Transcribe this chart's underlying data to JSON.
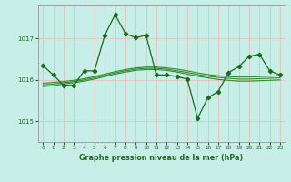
{
  "title": "Graphe pression niveau de la mer (hPa)",
  "background_color": "#c8eee8",
  "grid_color": "#e8b8b8",
  "line_color_main": "#1a6b1a",
  "line_color_smooth": "#2d8b2d",
  "xlim": [
    -0.5,
    23.5
  ],
  "ylim": [
    1014.5,
    1017.8
  ],
  "yticks": [
    1015,
    1016,
    1017
  ],
  "xticks": [
    0,
    1,
    2,
    3,
    4,
    5,
    6,
    7,
    8,
    9,
    10,
    11,
    12,
    13,
    14,
    15,
    16,
    17,
    18,
    19,
    20,
    21,
    22,
    23
  ],
  "series_main": [
    1016.35,
    1016.12,
    1015.87,
    1015.87,
    1016.22,
    1016.22,
    1017.08,
    1017.58,
    1017.12,
    1017.02,
    1017.08,
    1016.12,
    1016.12,
    1016.08,
    1016.02,
    1015.07,
    1015.57,
    1015.72,
    1016.18,
    1016.32,
    1016.57,
    1016.62,
    1016.22,
    1016.12
  ],
  "series_smooth1": [
    1015.92,
    1015.94,
    1015.96,
    1015.99,
    1016.03,
    1016.08,
    1016.14,
    1016.2,
    1016.25,
    1016.29,
    1016.31,
    1016.31,
    1016.29,
    1016.26,
    1016.22,
    1016.17,
    1016.13,
    1016.1,
    1016.08,
    1016.07,
    1016.07,
    1016.08,
    1016.09,
    1016.1
  ],
  "series_smooth2": [
    1015.88,
    1015.9,
    1015.93,
    1015.96,
    1016.0,
    1016.05,
    1016.11,
    1016.17,
    1016.22,
    1016.26,
    1016.28,
    1016.28,
    1016.26,
    1016.22,
    1016.18,
    1016.13,
    1016.09,
    1016.06,
    1016.04,
    1016.02,
    1016.02,
    1016.03,
    1016.04,
    1016.05
  ],
  "series_smooth3": [
    1015.84,
    1015.86,
    1015.9,
    1015.93,
    1015.97,
    1016.02,
    1016.08,
    1016.14,
    1016.19,
    1016.23,
    1016.25,
    1016.25,
    1016.23,
    1016.19,
    1016.14,
    1016.09,
    1016.05,
    1016.01,
    1015.99,
    1015.97,
    1015.97,
    1015.98,
    1015.99,
    1016.0
  ]
}
